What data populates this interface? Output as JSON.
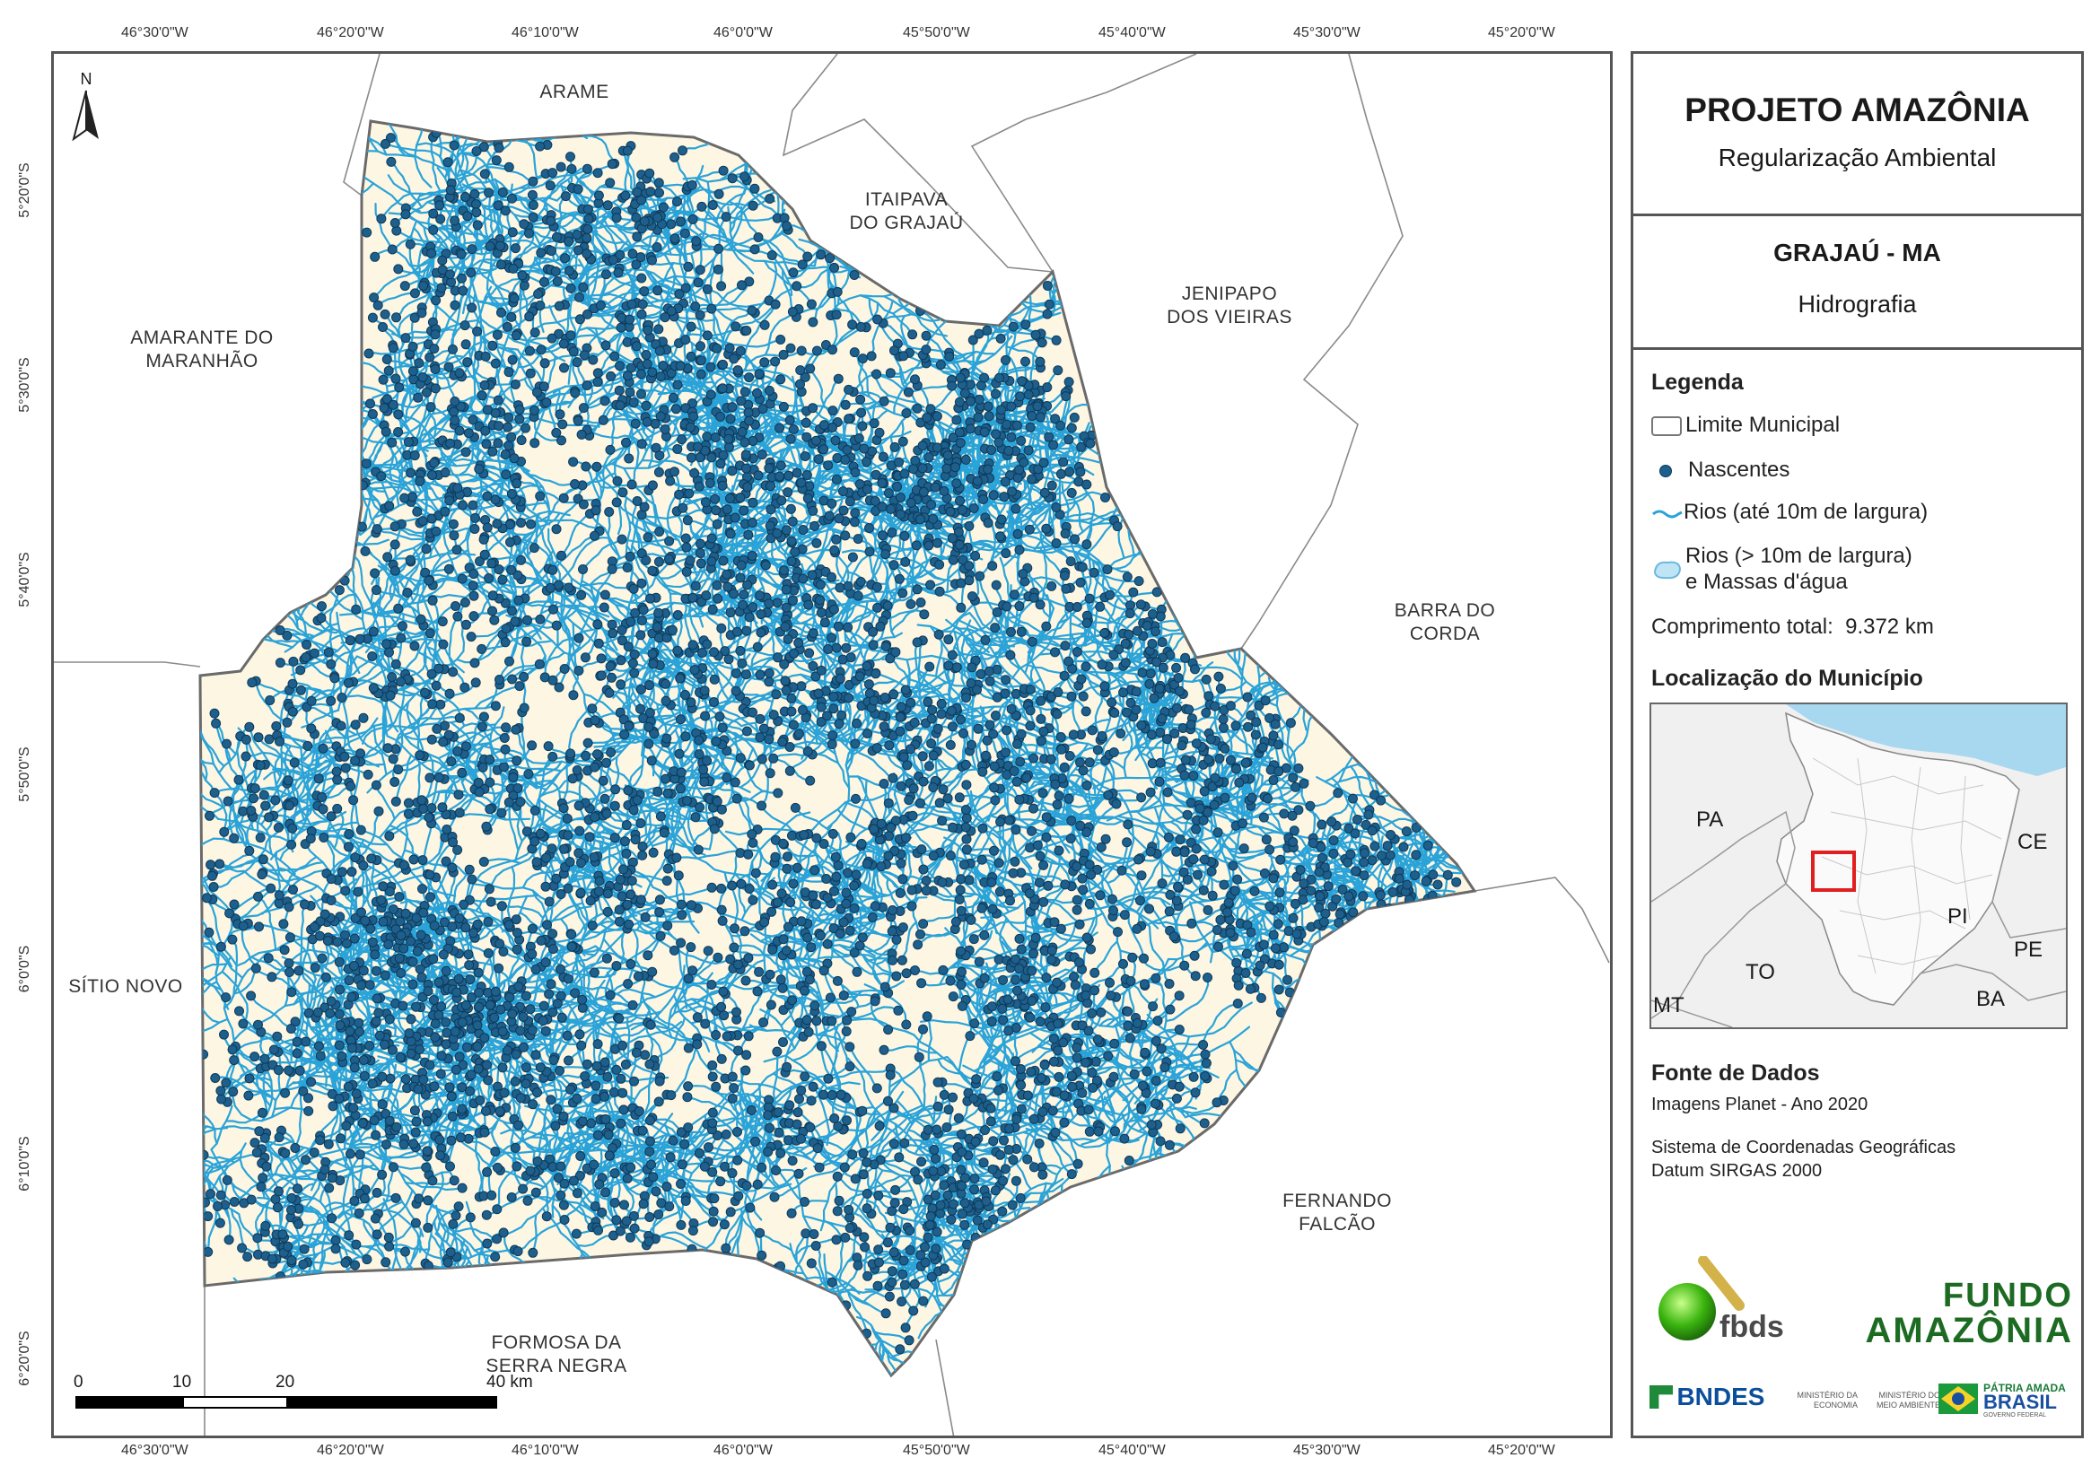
{
  "ticks": {
    "top": [
      "46°30'0\"W",
      "46°20'0\"W",
      "46°10'0\"W",
      "46°0'0\"W",
      "45°50'0\"W",
      "45°40'0\"W",
      "45°30'0\"W",
      "45°20'0\"W"
    ],
    "bottom": [
      "46°30'0\"W",
      "46°20'0\"W",
      "46°10'0\"W",
      "46°0'0\"W",
      "45°50'0\"W",
      "45°40'0\"W",
      "45°30'0\"W",
      "45°20'0\"W"
    ],
    "left": [
      "5°20'0\"S",
      "5°30'0\"S",
      "5°40'0\"S",
      "5°50'0\"S",
      "6°0'0\"S",
      "6°10'0\"S",
      "6°20'0\"S"
    ]
  },
  "north_arrow": "N",
  "municipalities": {
    "arame": "ARAME",
    "itaipava": [
      "ITAIPAVA",
      "DO GRAJAÚ"
    ],
    "jenipapo": [
      "JENIPAPO",
      "DOS VIEIRAS"
    ],
    "amarante": [
      "AMARANTE DO",
      "MARANHÃO"
    ],
    "barra": [
      "BARRA DO",
      "CORDA"
    ],
    "sitio": "SÍTIO NOVO",
    "fernando": [
      "FERNANDO",
      "FALCÃO"
    ],
    "formosa": [
      "FORMOSA DA",
      "SERRA NEGRA"
    ]
  },
  "scalebar": {
    "labels": [
      "0",
      "10",
      "20",
      "40 km"
    ]
  },
  "panel": {
    "title": "PROJETO AMAZÔNIA",
    "subtitle": "Regularização Ambiental",
    "municipality": "GRAJAÚ - MA",
    "theme": "Hidrografia",
    "legend_title": "Legenda",
    "legend": {
      "limite": "Limite Municipal",
      "nascentes": "Nascentes",
      "rios_small": "Rios (até 10m de largura)",
      "rios_big_1": "Rios (> 10m de largura)",
      "rios_big_2": "e Massas d'água"
    },
    "total_label": "Comprimento total:",
    "total_value": "9.372 km",
    "location_title": "Localização do Município",
    "inset_labels": {
      "pa": "PA",
      "ce": "CE",
      "pi": "PI",
      "to": "TO",
      "pe": "PE",
      "ba": "BA",
      "mt": "MT"
    },
    "sources_title": "Fonte de Dados",
    "source_1": "Imagens Planet - Ano 2020",
    "source_2": "Sistema de Coordenadas Geográficas",
    "source_3": "Datum SIRGAS 2000",
    "logos": {
      "fbds": "fbds",
      "fundo_1": "FUNDO",
      "fundo_2": "AMAZÔNIA",
      "bndes": "BNDES",
      "min_economia": [
        "MINISTÉRIO DA",
        "ECONOMIA"
      ],
      "min_meio": [
        "MINISTÉRIO DO",
        "MEIO AMBIENTE"
      ],
      "patria_1": "PÁTRIA AMADA",
      "patria_2": "BRASIL",
      "patria_3": "GOVERNO FEDERAL"
    }
  },
  "colors": {
    "river": "#2aa3d8",
    "spring": "#1e5f8c",
    "municipality_fill": "#fdf6e3",
    "boundary": "#6a6a6a",
    "inset_sea": "#a8d8ef",
    "highlight": "#e02020"
  }
}
